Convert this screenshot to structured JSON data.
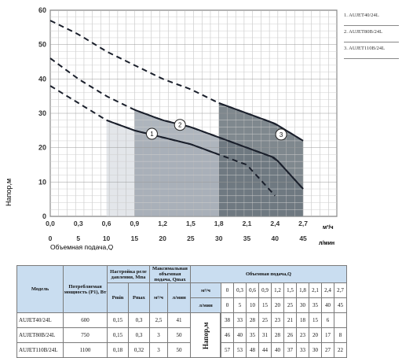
{
  "chart_data": {
    "type": "line",
    "ylabel": "Напор,м",
    "xlabel": "Объемная подача,Q",
    "y_ticks": [
      "0",
      "10",
      "20",
      "30",
      "40",
      "50",
      "60"
    ],
    "ylim": [
      0,
      60
    ],
    "x_ticks_m3h": [
      "0,0",
      "0,3",
      "0,6",
      "0,9",
      "1,2",
      "1,5",
      "1,8",
      "2,1",
      "2,4",
      "2,7"
    ],
    "x_unit_m3h": "м³/ч",
    "x_ticks_lmin": [
      "0",
      "5",
      "10",
      "15",
      "20",
      "25",
      "30",
      "35",
      "40",
      "45"
    ],
    "x_unit_lmin": "л/мин",
    "xlim_lmin": [
      0,
      51
    ],
    "grid": true,
    "series": [
      {
        "name": "1",
        "color": "#1a1f2b",
        "x": [
          0,
          5,
          10,
          15,
          20,
          25,
          30,
          35,
          40,
          45
        ],
        "y": [
          38,
          33,
          28,
          25,
          23,
          21,
          18,
          15,
          6,
          null
        ],
        "solid_range": [
          10,
          30
        ]
      },
      {
        "name": "2",
        "color": "#1a1f2b",
        "x": [
          0,
          5,
          10,
          15,
          20,
          25,
          30,
          35,
          40,
          45
        ],
        "y": [
          46,
          40,
          35,
          31,
          28,
          26,
          23,
          20,
          17,
          8
        ],
        "solid_range": [
          15,
          45
        ]
      },
      {
        "name": "3",
        "color": "#1a1f2b",
        "x": [
          0,
          5,
          10,
          15,
          20,
          25,
          30,
          35,
          40,
          45
        ],
        "y": [
          57,
          53,
          48,
          44,
          40,
          37,
          33,
          30,
          27,
          22
        ],
        "solid_range": [
          30,
          50
        ]
      }
    ]
  },
  "legend": [
    "1. AUJET40/24L",
    "2. AUJET80B/24L",
    "3. AUJET110B/24L"
  ],
  "table": {
    "h_model": "Модель",
    "h_power": "Потребляемая мощность (P1), Вт",
    "h_relay": "Настройка реле давления, Мпа",
    "h_pmin": "Pmin",
    "h_pmax": "Pmax",
    "h_qmax": "Максимальная объемная подача, Qmax",
    "h_flow": "Объемная подача,Q",
    "u_m3h": "м³/ч",
    "u_lmin": "л/мин",
    "napor": "Напор,м",
    "q_m3h": [
      "0",
      "0,3",
      "0,6",
      "0,9",
      "1,2",
      "1,5",
      "1,8",
      "2,1",
      "2,4",
      "2,7"
    ],
    "q_lmin": [
      "0",
      "5",
      "10",
      "15",
      "20",
      "25",
      "30",
      "35",
      "40",
      "45"
    ],
    "rows": [
      {
        "model": "AUJET40/24L",
        "power": "600",
        "pmin": "0,15",
        "pmax": "0,3",
        "qm3": "2,5",
        "ql": "41",
        "heads": [
          "38",
          "33",
          "28",
          "25",
          "23",
          "21",
          "18",
          "15",
          "6",
          ""
        ]
      },
      {
        "model": "AUJET80B/24L",
        "power": "750",
        "pmin": "0,15",
        "pmax": "0,3",
        "qm3": "3",
        "ql": "50",
        "heads": [
          "46",
          "40",
          "35",
          "31",
          "28",
          "26",
          "23",
          "20",
          "17",
          "8"
        ]
      },
      {
        "model": "AUJET110B/24L",
        "power": "1100",
        "pmin": "0,18",
        "pmax": "0,32",
        "qm3": "3",
        "ql": "50",
        "heads": [
          "57",
          "53",
          "48",
          "44",
          "40",
          "37",
          "33",
          "30",
          "27",
          "22"
        ]
      }
    ]
  }
}
